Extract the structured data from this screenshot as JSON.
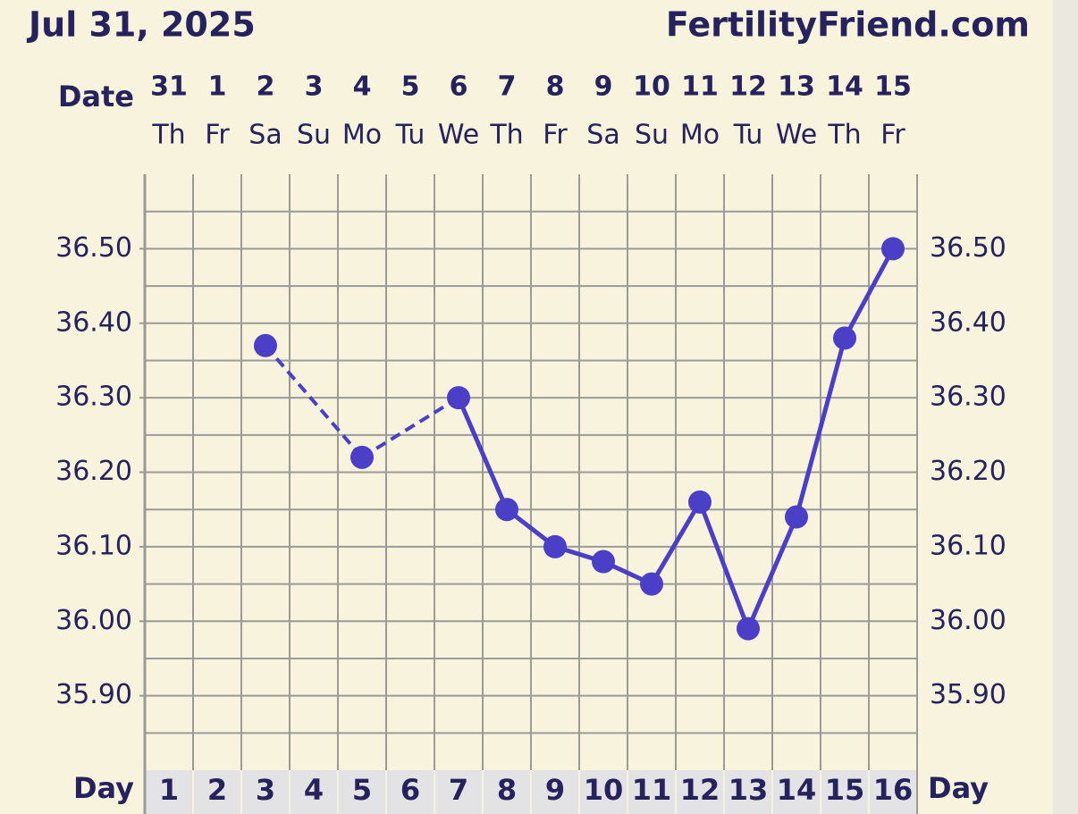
{
  "chart_data": {
    "type": "line",
    "title": "Jul 31, 2025",
    "site": "FertilityFriend.com",
    "date_label": "Date",
    "day_label": "Day",
    "dates": [
      "31",
      "1",
      "2",
      "3",
      "4",
      "5",
      "6",
      "7",
      "8",
      "9",
      "10",
      "11",
      "12",
      "13",
      "14",
      "15"
    ],
    "weekdays": [
      "Th",
      "Fr",
      "Sa",
      "Su",
      "Mo",
      "Tu",
      "We",
      "Th",
      "Fr",
      "Sa",
      "Su",
      "Mo",
      "Tu",
      "We",
      "Th",
      "Fr"
    ],
    "categories": [
      1,
      2,
      3,
      4,
      5,
      6,
      7,
      8,
      9,
      10,
      11,
      12,
      13,
      14,
      15,
      16
    ],
    "series": [
      {
        "color": "#4a3fc6",
        "values": [
          null,
          null,
          36.37,
          null,
          36.22,
          null,
          36.3,
          36.15,
          36.1,
          36.08,
          36.05,
          36.16,
          35.99,
          36.14,
          36.38,
          36.5
        ]
      }
    ],
    "ylim": [
      35.8,
      36.6
    ],
    "yticks": [
      {
        "value": 35.9,
        "label": "35.90"
      },
      {
        "value": 36.0,
        "label": "36.00"
      },
      {
        "value": 36.1,
        "label": "36.10"
      },
      {
        "value": 36.2,
        "label": "36.20"
      },
      {
        "value": 36.3,
        "label": "36.30"
      },
      {
        "value": 36.4,
        "label": "36.40"
      },
      {
        "value": 36.5,
        "label": "36.50"
      }
    ],
    "grid_yticks": [
      35.85,
      35.9,
      35.95,
      36.0,
      36.05,
      36.1,
      36.15,
      36.2,
      36.25,
      36.3,
      36.35,
      36.4,
      36.45,
      36.5,
      36.55
    ],
    "grid": true,
    "gaps_dashed": true
  }
}
